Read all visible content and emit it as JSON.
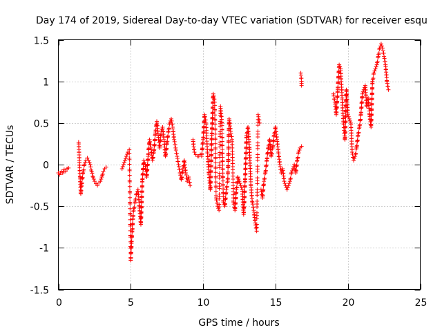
{
  "chart_data": {
    "type": "scatter",
    "title": "Day 174 of 2019, Sidereal Day-to-day VTEC variation (SDTVAR) for receiver esqu",
    "xlabel": "GPS time / hours",
    "ylabel": "SDTVAR / TECUs",
    "xlim": [
      0,
      25
    ],
    "ylim": [
      -1.5,
      1.5
    ],
    "xticks": [
      0,
      5,
      10,
      15,
      20,
      25
    ],
    "xtick_labels": [
      "0",
      "5",
      "10",
      "15",
      "20",
      "25"
    ],
    "yticks": [
      -1.5,
      -1,
      -0.5,
      0,
      0.5,
      1,
      1.5
    ],
    "ytick_labels": [
      "-1.5",
      "-1",
      "-0.5",
      "0",
      "0.5",
      "1",
      "1.5"
    ],
    "grid": true,
    "marker": "+",
    "series": [
      {
        "name": "SDTVAR",
        "color": "#ff0000",
        "segments": [
          {
            "x": [
              0.0,
              0.1,
              0.2,
              0.3,
              0.4,
              0.5,
              0.6,
              0.7
            ],
            "y": [
              -0.1,
              -0.12,
              -0.08,
              -0.1,
              -0.06,
              -0.08,
              -0.05,
              -0.04
            ]
          },
          {
            "x": [
              1.4,
              1.45,
              1.5,
              1.55,
              1.6,
              1.7,
              1.8,
              1.9,
              2.0,
              2.1,
              2.2,
              2.3,
              2.4,
              2.5,
              2.6,
              2.7,
              2.8,
              2.9,
              3.0,
              3.1,
              3.2,
              3.3
            ],
            "y": [
              0.27,
              0.05,
              -0.15,
              -0.35,
              -0.25,
              -0.1,
              0.0,
              0.05,
              0.08,
              0.05,
              0.0,
              -0.08,
              -0.15,
              -0.2,
              -0.23,
              -0.25,
              -0.22,
              -0.2,
              -0.15,
              -0.08,
              -0.05,
              -0.03
            ]
          },
          {
            "x": [
              4.4,
              4.5,
              4.6,
              4.7,
              4.8,
              4.9,
              5.0,
              5.05,
              5.1,
              5.15,
              5.2,
              5.3,
              5.4,
              5.5,
              5.6,
              5.7,
              5.8,
              5.9,
              6.0,
              6.1,
              6.2,
              6.3,
              6.4,
              6.5,
              6.6,
              6.7,
              6.8,
              6.9,
              7.0,
              7.1,
              7.2,
              7.3,
              7.4,
              7.5,
              7.6,
              7.7,
              7.8,
              7.9,
              8.0,
              8.1,
              8.2,
              8.3,
              8.4,
              8.5,
              8.6,
              8.7,
              8.8,
              8.9,
              9.0,
              9.1
            ],
            "y": [
              -0.05,
              0.0,
              0.05,
              0.1,
              0.15,
              0.18,
              -1.15,
              -0.95,
              -0.8,
              -0.65,
              -0.55,
              -0.45,
              -0.35,
              -0.3,
              -0.5,
              -0.72,
              -0.2,
              0.05,
              0.0,
              -0.15,
              0.1,
              0.3,
              0.2,
              0.05,
              0.15,
              0.38,
              0.52,
              0.35,
              0.2,
              0.4,
              0.45,
              0.3,
              0.1,
              0.25,
              0.4,
              0.5,
              0.55,
              0.45,
              0.3,
              0.2,
              0.1,
              0.0,
              -0.1,
              -0.18,
              -0.05,
              0.05,
              -0.1,
              -0.2,
              -0.15,
              -0.25
            ]
          },
          {
            "x": [
              9.3,
              9.4,
              9.5,
              9.6,
              9.7,
              9.8,
              9.9,
              10.0,
              10.1,
              10.2,
              10.3,
              10.4,
              10.5,
              10.6,
              10.7,
              10.8,
              10.9,
              11.0,
              11.1,
              11.2,
              11.3,
              11.4,
              11.5,
              11.6,
              11.7,
              11.8,
              11.9,
              12.0,
              12.1,
              12.2,
              12.3,
              12.4,
              12.5,
              12.6,
              12.7,
              12.8,
              12.9,
              13.0,
              13.1,
              13.2,
              13.3,
              13.4,
              13.5,
              13.6,
              13.7,
              13.8,
              13.9
            ],
            "y": [
              0.3,
              0.15,
              0.12,
              0.1,
              0.1,
              0.12,
              0.1,
              0.3,
              0.6,
              0.5,
              0.15,
              -0.1,
              -0.3,
              0.35,
              0.85,
              0.75,
              -0.4,
              -0.5,
              -0.55,
              0.7,
              0.5,
              -0.45,
              -0.5,
              -0.3,
              -0.2,
              0.55,
              0.4,
              0.3,
              -0.45,
              -0.55,
              -0.3,
              -0.15,
              -0.2,
              -0.25,
              -0.3,
              -0.6,
              -0.2,
              0.35,
              0.45,
              0.2,
              -0.25,
              -0.45,
              -0.55,
              -0.7,
              -0.8,
              0.6,
              0.5
            ]
          },
          {
            "x": [
              14.0,
              14.1,
              14.2,
              14.3,
              14.4,
              14.5,
              14.6,
              14.7,
              14.8,
              14.9,
              15.0,
              15.1,
              15.2,
              15.3,
              15.4,
              15.5,
              15.6,
              15.7,
              15.8,
              15.9,
              16.0,
              16.1,
              16.2,
              16.3,
              16.4,
              16.5,
              16.6,
              16.7,
              16.8
            ],
            "y": [
              -0.3,
              -0.4,
              -0.2,
              -0.1,
              0.05,
              0.2,
              0.3,
              0.1,
              0.2,
              0.35,
              0.45,
              0.3,
              0.15,
              0.0,
              -0.1,
              -0.05,
              -0.2,
              -0.25,
              -0.3,
              -0.25,
              -0.2,
              -0.1,
              -0.05,
              0.0,
              -0.1,
              0.05,
              0.15,
              0.2,
              0.22
            ]
          },
          {
            "x": [
              16.75,
              16.8,
              16.8
            ],
            "y": [
              1.1,
              1.0,
              0.95
            ]
          },
          {
            "x": [
              19.0,
              19.1,
              19.2,
              19.3,
              19.4,
              19.5,
              19.6,
              19.7,
              19.8,
              19.9,
              20.0,
              20.1,
              20.2,
              20.3,
              20.4,
              20.5,
              20.6,
              20.7,
              20.8,
              20.9,
              21.0,
              21.1,
              21.2,
              21.3,
              21.4,
              21.5,
              21.6,
              21.7,
              21.8,
              21.9,
              22.0,
              22.1,
              22.2,
              22.3,
              22.4,
              22.5,
              22.6,
              22.7,
              22.8
            ],
            "y": [
              0.85,
              0.75,
              0.6,
              0.9,
              1.2,
              1.15,
              0.8,
              0.5,
              0.3,
              0.9,
              0.6,
              0.55,
              0.5,
              0.15,
              0.05,
              0.1,
              0.2,
              0.35,
              0.45,
              0.6,
              0.85,
              0.9,
              0.95,
              0.7,
              0.8,
              0.6,
              0.45,
              1.0,
              1.1,
              1.15,
              1.2,
              1.3,
              1.4,
              1.45,
              1.4,
              1.3,
              1.2,
              1.0,
              0.9
            ]
          }
        ]
      }
    ]
  }
}
